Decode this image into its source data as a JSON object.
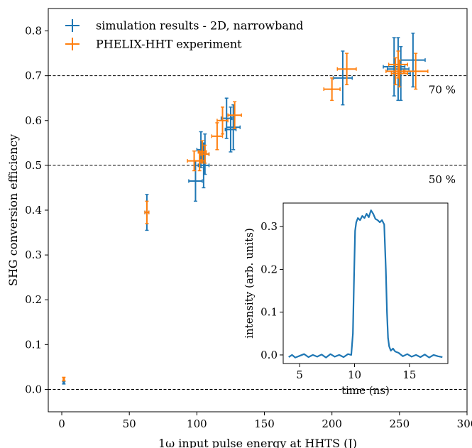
{
  "chart_data": [
    {
      "type": "scatter",
      "xlabel": "1ω input pulse energy at HHTS (J)",
      "ylabel": "SHG conversion efficiency",
      "xlim": [
        -10,
        300
      ],
      "ylim": [
        -0.05,
        0.85
      ],
      "xticks": [
        0,
        50,
        100,
        150,
        200,
        250,
        300
      ],
      "yticks": [
        0.0,
        0.1,
        0.2,
        0.3,
        0.4,
        0.5,
        0.6,
        0.7,
        0.8
      ],
      "xtick_labels": [
        "0",
        "50",
        "100",
        "150",
        "200",
        "250",
        "300"
      ],
      "ytick_labels": [
        "0.0",
        "0.1",
        "0.2",
        "0.3",
        "0.4",
        "0.5",
        "0.6",
        "0.7",
        "0.8"
      ],
      "grid": false,
      "legend_position": "top-left",
      "reference_lines": [
        {
          "y": 0.7,
          "label": "70 %"
        },
        {
          "y": 0.5,
          "label": "50 %"
        }
      ],
      "series": [
        {
          "name": "simulation results - 2D, narrowband",
          "color": "#1f77b4",
          "points": [
            {
              "x": 1.5,
              "y": 0.015,
              "xerr": 0.5,
              "yerr": 0.003
            },
            {
              "x": 63,
              "y": 0.395,
              "xerr": 1.5,
              "yerr": 0.04
            },
            {
              "x": 99,
              "y": 0.465,
              "xerr": 5,
              "yerr": 0.045
            },
            {
              "x": 103,
              "y": 0.535,
              "xerr": 3,
              "yerr": 0.04
            },
            {
              "x": 105,
              "y": 0.5,
              "xerr": 4,
              "yerr": 0.05
            },
            {
              "x": 106,
              "y": 0.525,
              "xerr": 3,
              "yerr": 0.045
            },
            {
              "x": 122,
              "y": 0.605,
              "xerr": 4,
              "yerr": 0.045
            },
            {
              "x": 125,
              "y": 0.58,
              "xerr": 4,
              "yerr": 0.05
            },
            {
              "x": 127,
              "y": 0.585,
              "xerr": 5,
              "yerr": 0.05
            },
            {
              "x": 208,
              "y": 0.695,
              "xerr": 7,
              "yerr": 0.06
            },
            {
              "x": 246,
              "y": 0.72,
              "xerr": 8,
              "yerr": 0.065
            },
            {
              "x": 249,
              "y": 0.715,
              "xerr": 8,
              "yerr": 0.07
            },
            {
              "x": 251,
              "y": 0.705,
              "xerr": 7,
              "yerr": 0.06
            },
            {
              "x": 260,
              "y": 0.735,
              "xerr": 9,
              "yerr": 0.06
            }
          ]
        },
        {
          "name": "PHELIX-HHT experiment",
          "color": "#ff7f0e",
          "points": [
            {
              "x": 1.5,
              "y": 0.023,
              "xerr": 0.5,
              "yerr": 0.004
            },
            {
              "x": 63,
              "y": 0.395,
              "xerr": 1.5,
              "yerr": 0.025
            },
            {
              "x": 98,
              "y": 0.51,
              "xerr": 5,
              "yerr": 0.022
            },
            {
              "x": 102,
              "y": 0.51,
              "xerr": 4,
              "yerr": 0.022
            },
            {
              "x": 104,
              "y": 0.53,
              "xerr": 3,
              "yerr": 0.025
            },
            {
              "x": 106,
              "y": 0.525,
              "xerr": 3,
              "yerr": 0.02
            },
            {
              "x": 115,
              "y": 0.565,
              "xerr": 4,
              "yerr": 0.03
            },
            {
              "x": 119,
              "y": 0.6,
              "xerr": 4,
              "yerr": 0.03
            },
            {
              "x": 128,
              "y": 0.612,
              "xerr": 5,
              "yerr": 0.03
            },
            {
              "x": 200,
              "y": 0.67,
              "xerr": 6,
              "yerr": 0.025
            },
            {
              "x": 211,
              "y": 0.715,
              "xerr": 7,
              "yerr": 0.035
            },
            {
              "x": 247,
              "y": 0.71,
              "xerr": 7,
              "yerr": 0.03
            },
            {
              "x": 249,
              "y": 0.725,
              "xerr": 7,
              "yerr": 0.03
            },
            {
              "x": 250,
              "y": 0.705,
              "xerr": 6,
              "yerr": 0.03
            },
            {
              "x": 262,
              "y": 0.71,
              "xerr": 9,
              "yerr": 0.04
            }
          ]
        }
      ]
    },
    {
      "type": "line",
      "role": "inset",
      "xlabel": "time (ns)",
      "ylabel": "intensity (arb. units)",
      "xlim": [
        3.5,
        18.5
      ],
      "ylim": [
        -0.02,
        0.355
      ],
      "xticks": [
        5,
        10,
        15
      ],
      "yticks": [
        0.0,
        0.1,
        0.2,
        0.3
      ],
      "xtick_labels": [
        "5",
        "10",
        "15"
      ],
      "ytick_labels": [
        "0.0",
        "0.1",
        "0.2",
        "0.3"
      ],
      "series": [
        {
          "color": "#1f77b4",
          "x": [
            4.0,
            4.3,
            4.6,
            5.0,
            5.4,
            5.8,
            6.2,
            6.6,
            7.0,
            7.4,
            7.8,
            8.2,
            8.6,
            9.0,
            9.4,
            9.7,
            9.85,
            9.95,
            10.05,
            10.15,
            10.3,
            10.5,
            10.7,
            10.9,
            11.1,
            11.3,
            11.5,
            11.7,
            11.9,
            12.1,
            12.3,
            12.5,
            12.7,
            12.85,
            12.95,
            13.05,
            13.15,
            13.3,
            13.5,
            13.7,
            14.0,
            14.4,
            14.8,
            15.2,
            15.6,
            16.0,
            16.4,
            16.8,
            17.2,
            17.6,
            18.0
          ],
          "y": [
            -0.005,
            0.0,
            -0.006,
            -0.002,
            0.002,
            -0.005,
            0.0,
            -0.004,
            0.001,
            -0.006,
            0.002,
            -0.004,
            0.0,
            -0.005,
            0.002,
            0.0,
            0.05,
            0.18,
            0.29,
            0.31,
            0.32,
            0.315,
            0.325,
            0.32,
            0.33,
            0.322,
            0.338,
            0.33,
            0.318,
            0.315,
            0.31,
            0.315,
            0.305,
            0.2,
            0.1,
            0.04,
            0.02,
            0.01,
            0.015,
            0.008,
            0.005,
            -0.003,
            0.002,
            -0.004,
            0.0,
            -0.005,
            0.001,
            -0.006,
            0.0,
            -0.003,
            -0.005
          ]
        }
      ]
    }
  ]
}
